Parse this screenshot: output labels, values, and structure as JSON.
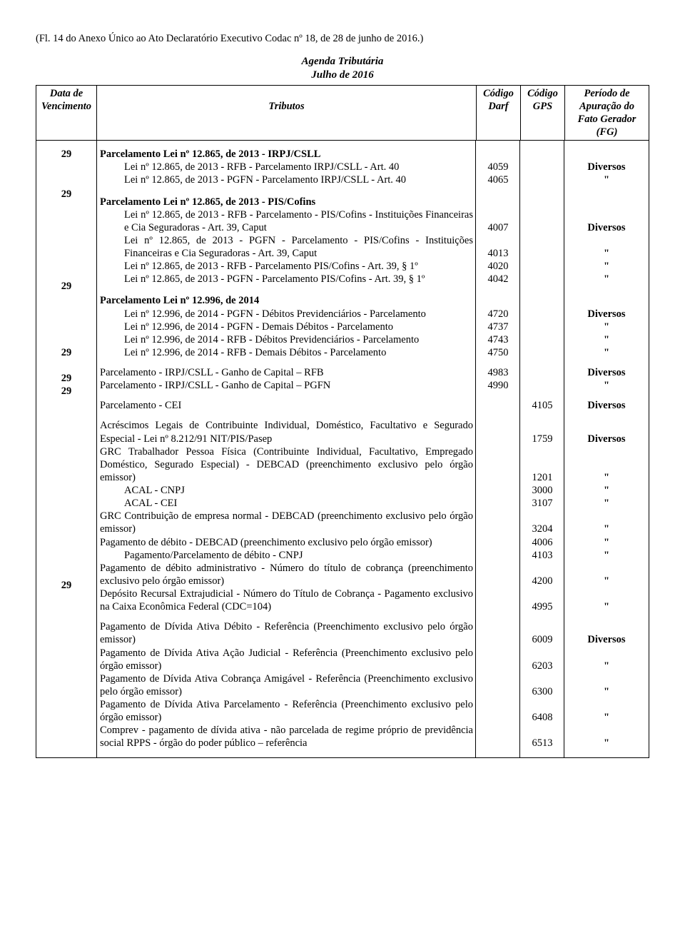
{
  "header": "(Fl. 14 do Anexo Único ao Ato Declaratório Executivo Codac nº 18, de 28 de junho de 2016.)",
  "title1": "Agenda Tributária",
  "title2": "Julho de 2016",
  "columns": {
    "c1a": "Data de",
    "c1b": "Vencimento",
    "c2": "Tributos",
    "c3a": "Código",
    "c3b": "Darf",
    "c4a": "Código",
    "c4b": "GPS",
    "c5a": "Período de",
    "c5b": "Apuração do",
    "c5c": "Fato Gerador (FG)"
  },
  "groups": [
    {
      "date": "29",
      "title": "Parcelamento Lei nº 12.865, de 2013 - IRPJ/CSLL",
      "rows": [
        {
          "text": "Lei nº 12.865, de 2013 - RFB - Parcelamento IRPJ/CSLL - Art. 40",
          "darf": "4059",
          "gps": "",
          "per": "Diversos"
        },
        {
          "text": "Lei nº 12.865, de 2013 - PGFN - Parcelamento IRPJ/CSLL - Art. 40",
          "darf": "4065",
          "gps": "",
          "per": "\""
        }
      ]
    },
    {
      "date": "29",
      "title": "Parcelamento Lei nº 12.865, de 2013 - PIS/Cofins",
      "rows": [
        {
          "text": "Lei nº 12.865, de 2013 - RFB - Parcelamento - PIS/Cofins - Instituições Financeiras e Cia Seguradoras - Art. 39, Caput",
          "darf": "4007",
          "gps": "",
          "per": "Diversos",
          "multi": true
        },
        {
          "text": "Lei nº 12.865, de 2013 - PGFN - Parcelamento - PIS/Cofins - Instituições Financeiras e Cia Seguradoras - Art. 39, Caput",
          "darf": "4013",
          "gps": "",
          "per": "\"",
          "multi": true
        },
        {
          "text": "Lei nº 12.865, de 2013 - RFB - Parcelamento  PIS/Cofins - Art. 39, § 1º",
          "darf": "4020",
          "gps": "",
          "per": "\""
        },
        {
          "text": "Lei nº 12.865, de 2013 - PGFN - Parcelamento PIS/Cofins - Art. 39, § 1º",
          "darf": "4042",
          "gps": "",
          "per": "\""
        }
      ]
    },
    {
      "date": "29",
      "title": "Parcelamento Lei nº 12.996, de 2014",
      "rows": [
        {
          "text": "Lei nº 12.996, de 2014 - PGFN - Débitos Previdenciários - Parcelamento",
          "darf": "4720",
          "gps": "",
          "per": "Diversos"
        },
        {
          "text": "Lei nº 12.996, de 2014 - PGFN - Demais Débitos - Parcelamento",
          "darf": "4737",
          "gps": "",
          "per": "\""
        },
        {
          "text": "Lei nº 12.996, de 2014 - RFB - Débitos Previdenciários - Parcelamento",
          "darf": "4743",
          "gps": "",
          "per": "\""
        },
        {
          "text": "Lei nº 12.996, de 2014 - RFB - Demais Débitos - Parcelamento",
          "darf": "4750",
          "gps": "",
          "per": "\""
        }
      ]
    },
    {
      "date": "29",
      "title": "",
      "rows": [
        {
          "text": "Parcelamento - IRPJ/CSLL - Ganho de Capital – RFB",
          "darf": "4983",
          "gps": "",
          "per": "Diversos",
          "noindent": true
        },
        {
          "text": "Parcelamento - IRPJ/CSLL - Ganho de Capital – PGFN",
          "darf": "4990",
          "gps": "",
          "per": "\"",
          "noindent": true
        }
      ]
    },
    {
      "date": "29",
      "title": "",
      "rows": [
        {
          "text": "Parcelamento - CEI",
          "darf": "",
          "gps": "4105",
          "per": "Diversos",
          "noindent": true
        }
      ]
    },
    {
      "date": "29",
      "title": "",
      "rows": [
        {
          "text": "Acréscimos Legais de Contribuinte Individual, Doméstico, Facultativo e Segurado Especial - Lei nº 8.212/91 NIT/PIS/Pasep",
          "darf": "",
          "gps": "1759",
          "per": "Diversos",
          "hang": true
        },
        {
          "text": "GRC Trabalhador Pessoa Física (Contribuinte Individual, Facultativo, Empregado Doméstico, Segurado Especial) - DEBCAD (preenchimento exclusivo pelo órgão emissor)",
          "darf": "",
          "gps": "1201",
          "per": "\"",
          "hang": true
        },
        {
          "text": "ACAL - CNPJ",
          "darf": "",
          "gps": "3000",
          "per": "\""
        },
        {
          "text": "ACAL - CEI",
          "darf": "",
          "gps": "3107",
          "per": "\""
        },
        {
          "text": "GRC Contribuição de empresa normal - DEBCAD (preenchimento exclusivo pelo órgão emissor)",
          "darf": "",
          "gps": "3204",
          "per": "\"",
          "hang": true
        },
        {
          "text": "Pagamento de débito - DEBCAD (preenchimento exclusivo pelo órgão emissor)",
          "darf": "",
          "gps": "4006",
          "per": "\"",
          "hang": true
        },
        {
          "text": "Pagamento/Parcelamento de débito - CNPJ",
          "darf": "",
          "gps": "4103",
          "per": "\""
        },
        {
          "text": "Pagamento de débito administrativo - Número do título de cobrança (preenchimento exclusivo pelo órgão emissor)",
          "darf": "",
          "gps": "4200",
          "per": "\"",
          "hang": true
        },
        {
          "text": "Depósito Recursal Extrajudicial - Número do Título de Cobrança - Pagamento exclusivo na Caixa Econômica Federal (CDC=104)",
          "darf": "",
          "gps": "4995",
          "per": "\"",
          "hang": true
        }
      ]
    },
    {
      "date": "29",
      "title": "",
      "rows": [
        {
          "text": "Pagamento de Dívida Ativa Débito - Referência (Preenchimento exclusivo pelo órgão emissor)",
          "darf": "",
          "gps": "6009",
          "per": "Diversos",
          "hang": true
        },
        {
          "text": "Pagamento de Dívida Ativa Ação Judicial - Referência (Preenchimento exclusivo pelo órgão emissor)",
          "darf": "",
          "gps": "6203",
          "per": "\"",
          "hang": true
        },
        {
          "text": "Pagamento de Dívida Ativa Cobrança Amigável - Referência (Preenchimento exclusivo pelo órgão emissor)",
          "darf": "",
          "gps": "6300",
          "per": "\"",
          "hang": true
        },
        {
          "text": "Pagamento de Dívida Ativa Parcelamento - Referência (Preenchimento exclusivo pelo órgão emissor)",
          "darf": "",
          "gps": "6408",
          "per": "\"",
          "hang": true
        },
        {
          "text": "Comprev - pagamento de dívida ativa - não parcelada de regime próprio de previdência social RPPS - órgão do poder público – referência",
          "darf": "",
          "gps": "6513",
          "per": "\"",
          "hang": true
        }
      ]
    }
  ]
}
